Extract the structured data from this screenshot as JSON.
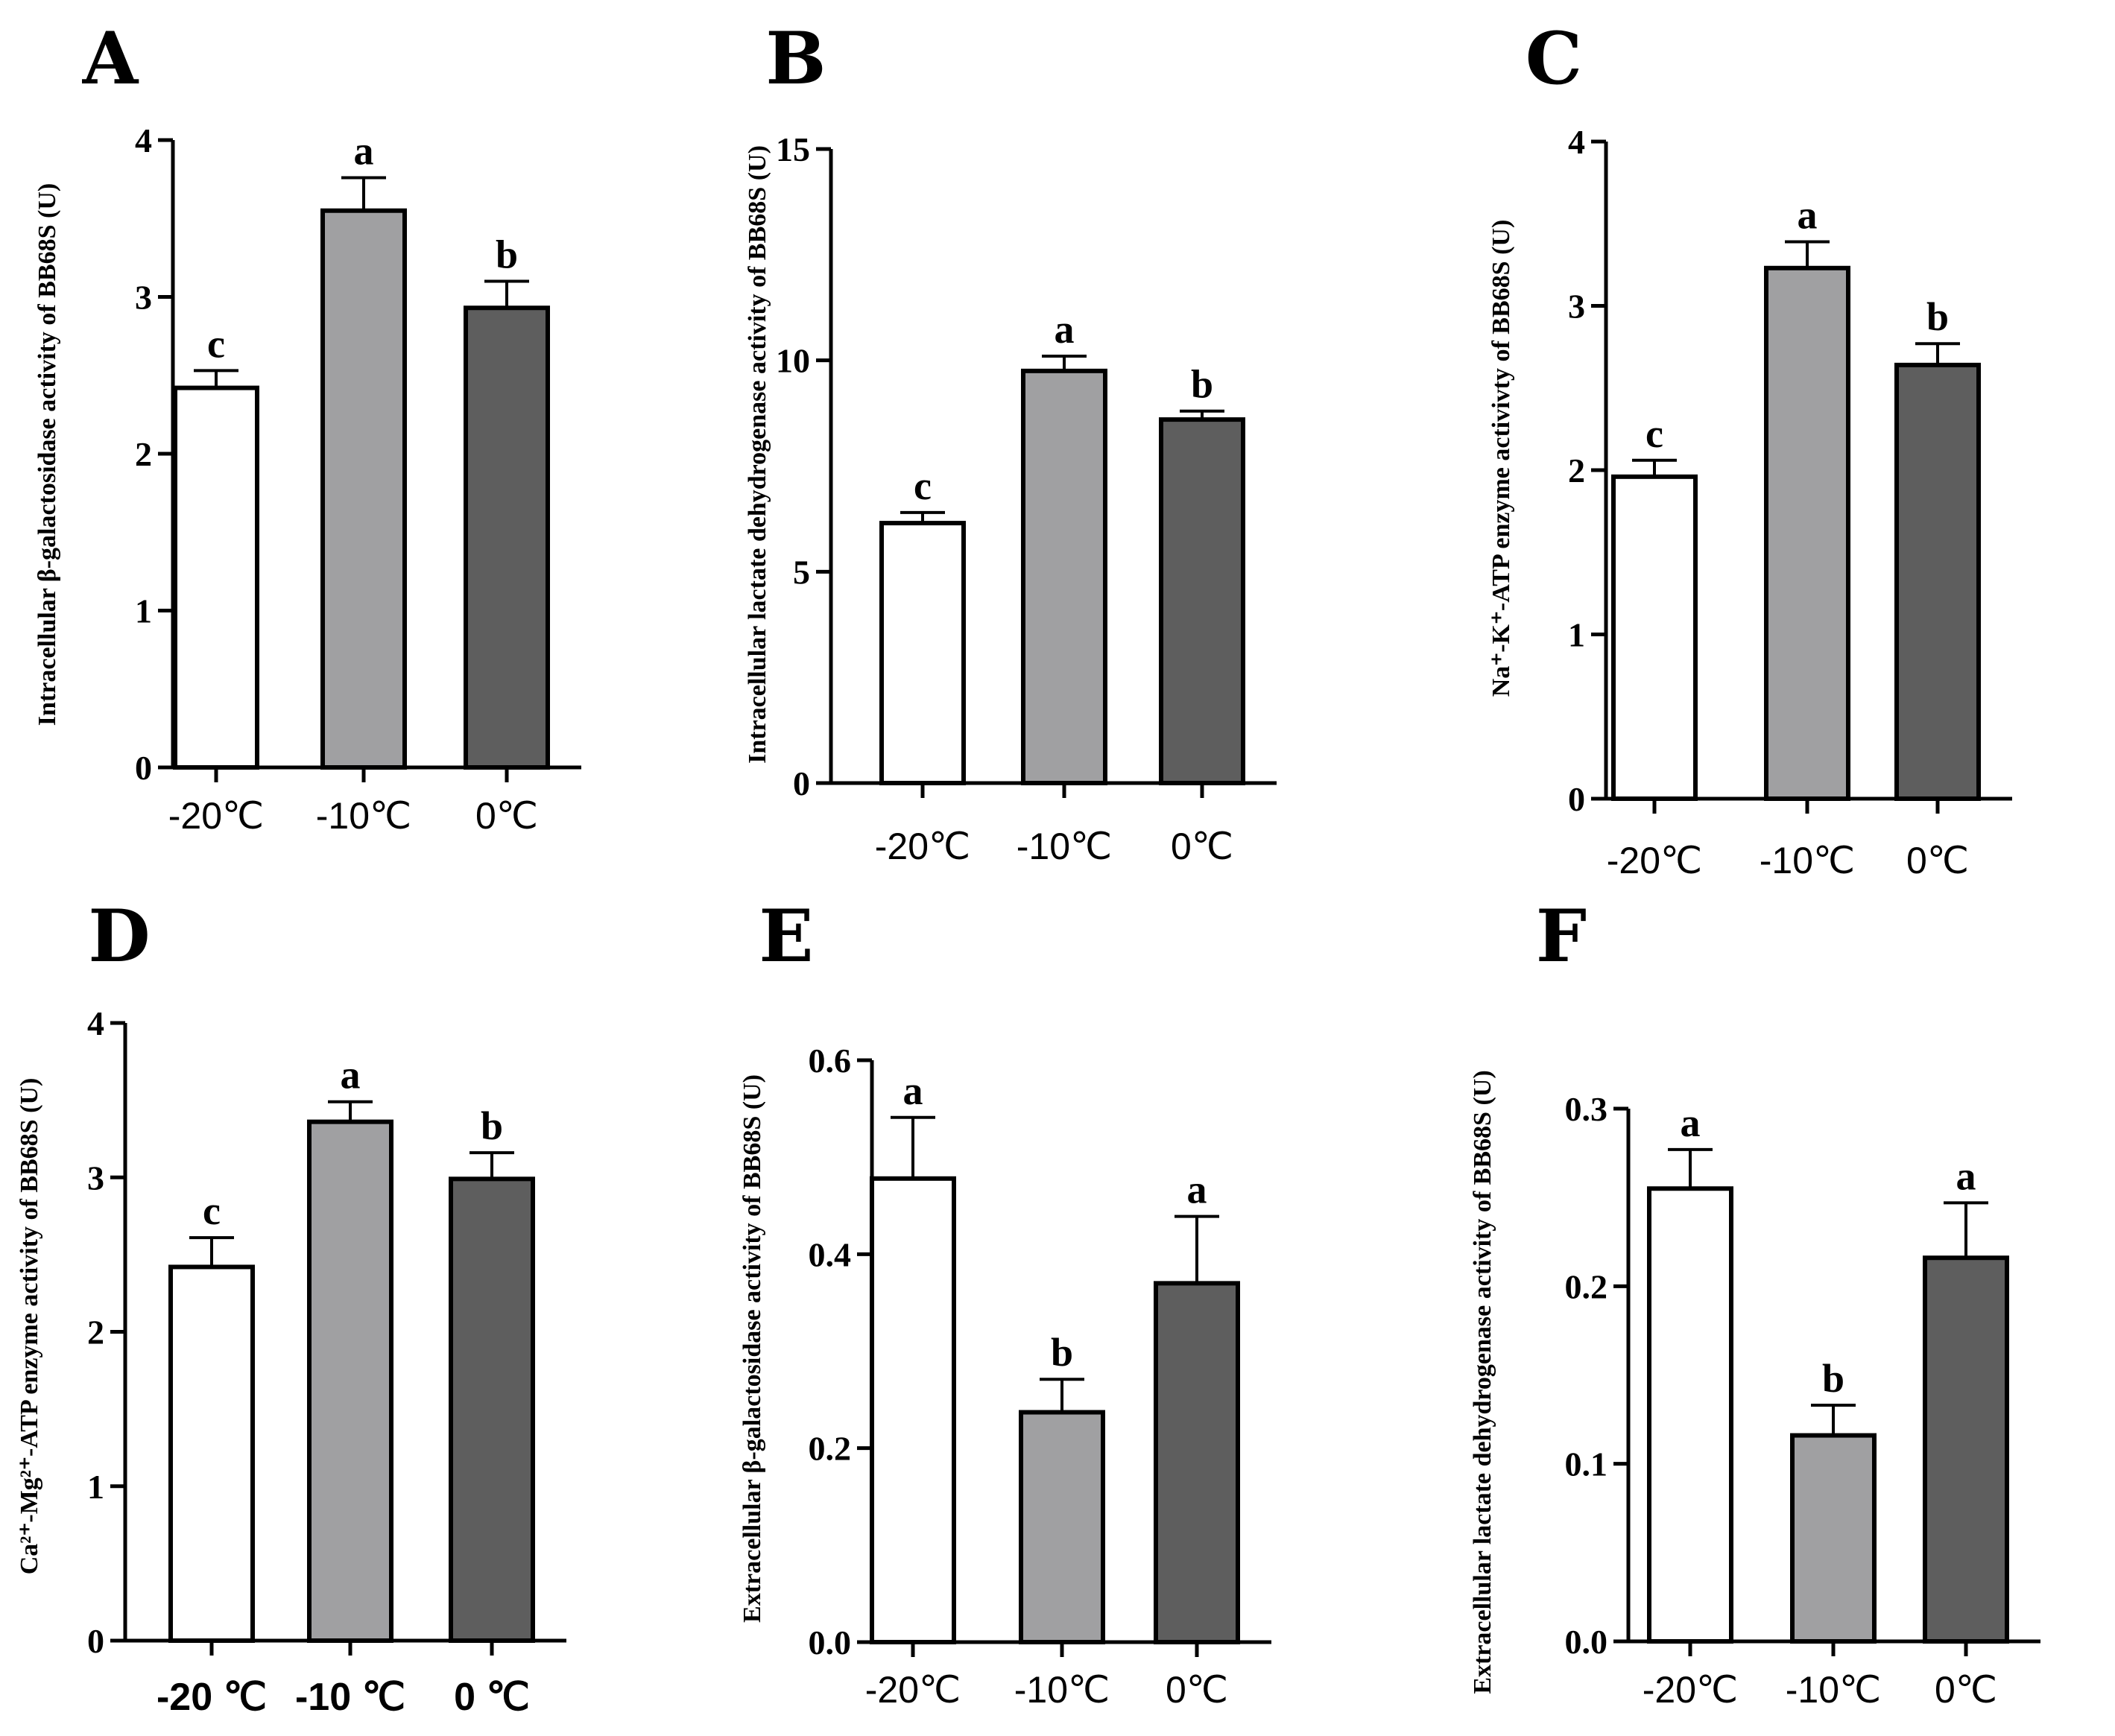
{
  "colors": {
    "white_bar": "#ffffff",
    "light_gray_bar": "#a0a0a2",
    "dark_gray_bar": "#5e5e5e",
    "axis": "#000000"
  },
  "chart_data": [
    {
      "panel": "A",
      "type": "bar",
      "categories": [
        "-20℃",
        "-10℃",
        "0℃"
      ],
      "ylabel": "Intracellular β-galactosidase activity of BB68S (U)",
      "ylim": [
        0,
        4
      ],
      "yticks": [
        "0",
        "1",
        "2",
        "3",
        "4"
      ],
      "values": [
        2.42,
        3.55,
        2.93
      ],
      "errors": [
        0.11,
        0.21,
        0.17
      ],
      "sig": [
        "c",
        "a",
        "b"
      ]
    },
    {
      "panel": "B",
      "type": "bar",
      "categories": [
        "-20℃",
        "-10℃",
        "0℃"
      ],
      "ylabel": "Intracellular lactate dehydrogenase activity of BB68S (U)",
      "ylim": [
        0,
        15
      ],
      "yticks": [
        "0",
        "5",
        "10",
        "15"
      ],
      "values": [
        6.15,
        9.75,
        8.6
      ],
      "errors": [
        0.25,
        0.35,
        0.2
      ],
      "sig": [
        "c",
        "a",
        "b"
      ]
    },
    {
      "panel": "C",
      "type": "bar",
      "categories": [
        "-20℃",
        "-10℃",
        "0℃"
      ],
      "ylabel": "Na⁺-K⁺-ATP enzyme activivty of BB68S (U)",
      "ylim": [
        0,
        4
      ],
      "yticks": [
        "0",
        "1",
        "2",
        "3",
        "4"
      ],
      "values": [
        1.96,
        3.23,
        2.64
      ],
      "errors": [
        0.1,
        0.16,
        0.13
      ],
      "sig": [
        "c",
        "a",
        "b"
      ]
    },
    {
      "panel": "D",
      "type": "bar",
      "categories": [
        "-20 ℃",
        "-10 ℃",
        "0 ℃"
      ],
      "ylabel": "Ca²⁺-Mg²⁺-ATP enzyme activity of BB68S (U)",
      "ylim": [
        0,
        4
      ],
      "yticks": [
        "0",
        "1",
        "2",
        "3",
        "4"
      ],
      "values": [
        2.42,
        3.36,
        2.99
      ],
      "errors": [
        0.19,
        0.13,
        0.17
      ],
      "sig": [
        "c",
        "a",
        "b"
      ]
    },
    {
      "panel": "E",
      "type": "bar",
      "categories": [
        "-20℃",
        "-10℃",
        "0℃"
      ],
      "ylabel": "Extracellular β-galactosidase activity of BB68S (U)",
      "ylim": [
        0,
        0.6
      ],
      "yticks": [
        "0.0",
        "0.2",
        "0.4",
        "0.6"
      ],
      "values": [
        0.478,
        0.237,
        0.37
      ],
      "errors": [
        0.063,
        0.034,
        0.069
      ],
      "sig": [
        "a",
        "b",
        "a"
      ]
    },
    {
      "panel": "F",
      "type": "bar",
      "categories": [
        "-20℃",
        "-10℃",
        "0℃"
      ],
      "ylabel": "Extracellular lactate dehydrogenase activity of BB68S (U)",
      "ylim": [
        0,
        0.3
      ],
      "yticks": [
        "0.0",
        "0.1",
        "0.2",
        "0.3"
      ],
      "values": [
        0.255,
        0.116,
        0.216
      ],
      "errors": [
        0.022,
        0.017,
        0.031
      ],
      "sig": [
        "a",
        "b",
        "a"
      ]
    }
  ]
}
